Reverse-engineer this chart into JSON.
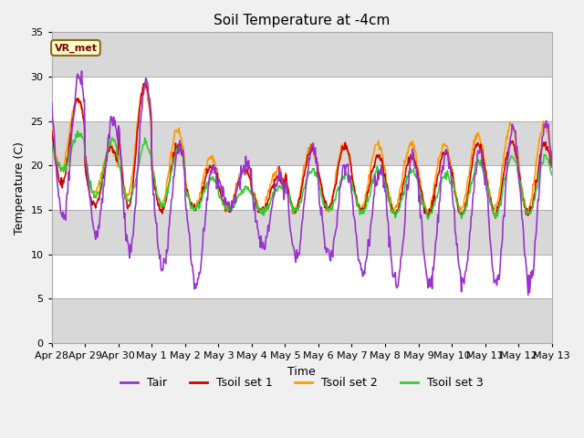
{
  "title": "Soil Temperature at -4cm",
  "xlabel": "Time",
  "ylabel": "Temperature (C)",
  "ylim": [
    0,
    35
  ],
  "yticks": [
    0,
    5,
    10,
    15,
    20,
    25,
    30,
    35
  ],
  "annotation": "VR_met",
  "legend": [
    "Tair",
    "Tsoil set 1",
    "Tsoil set 2",
    "Tsoil set 3"
  ],
  "line_colors": [
    "#9933cc",
    "#cc0000",
    "#ff9900",
    "#33cc33"
  ],
  "line_width": 1.2,
  "band_colors": [
    "#ffffff",
    "#e0e0e0",
    "#ffffff",
    "#e0e0e0",
    "#ffffff",
    "#e0e0e0",
    "#ffffff"
  ],
  "fig_bg": "#f0f0f0",
  "xtick_labels": [
    "Apr 28",
    "Apr 29",
    "Apr 30",
    "May 1",
    "May 2",
    "May 3",
    "May 4",
    "May 5",
    "May 6",
    "May 7",
    "May 8",
    "May 9",
    "May 10",
    "May 11",
    "May 12",
    "May 13"
  ]
}
